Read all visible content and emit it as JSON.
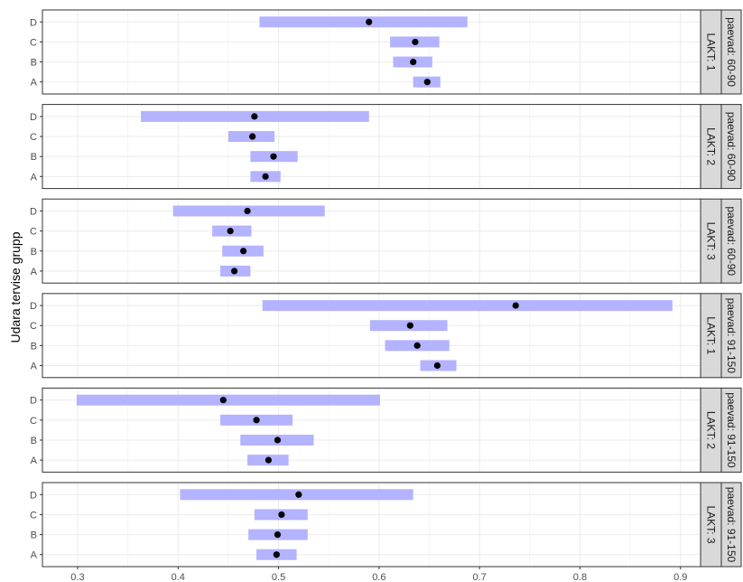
{
  "chart_data": {
    "type": "dot-interval",
    "ylabel": "Udara tervise grupp",
    "xlabel": "",
    "xlim": [
      0.265,
      0.92
    ],
    "x_ticks": [
      "0.3",
      "0.4",
      "0.5",
      "0.6",
      "0.7",
      "0.8",
      "0.9"
    ],
    "x_tick_values": [
      0.3,
      0.4,
      0.5,
      0.6,
      0.7,
      0.8,
      0.9
    ],
    "categories": [
      "A",
      "B",
      "C",
      "D"
    ],
    "grid": true,
    "colors": {
      "interval": "#b3b3ff",
      "point": "#000000",
      "strip": "#d9d9d9",
      "grid": "#ebebeb",
      "border": "#333333"
    },
    "panels": [
      {
        "lakt": "LAKT: 1",
        "paevad": "paevad: 60-90",
        "points": [
          {
            "cat": "A",
            "est": 0.648,
            "lo": 0.634,
            "hi": 0.661
          },
          {
            "cat": "B",
            "est": 0.634,
            "lo": 0.614,
            "hi": 0.653
          },
          {
            "cat": "C",
            "est": 0.636,
            "lo": 0.611,
            "hi": 0.66
          },
          {
            "cat": "D",
            "est": 0.59,
            "lo": 0.481,
            "hi": 0.688
          }
        ]
      },
      {
        "lakt": "LAKT: 2",
        "paevad": "paevad: 60-90",
        "points": [
          {
            "cat": "A",
            "est": 0.487,
            "lo": 0.472,
            "hi": 0.502
          },
          {
            "cat": "B",
            "est": 0.495,
            "lo": 0.472,
            "hi": 0.519
          },
          {
            "cat": "C",
            "est": 0.474,
            "lo": 0.45,
            "hi": 0.496
          },
          {
            "cat": "D",
            "est": 0.476,
            "lo": 0.363,
            "hi": 0.59
          }
        ]
      },
      {
        "lakt": "LAKT: 3",
        "paevad": "paevad: 60-90",
        "points": [
          {
            "cat": "A",
            "est": 0.456,
            "lo": 0.442,
            "hi": 0.472
          },
          {
            "cat": "B",
            "est": 0.465,
            "lo": 0.444,
            "hi": 0.485
          },
          {
            "cat": "C",
            "est": 0.452,
            "lo": 0.434,
            "hi": 0.473
          },
          {
            "cat": "D",
            "est": 0.469,
            "lo": 0.395,
            "hi": 0.546
          }
        ]
      },
      {
        "lakt": "LAKT: 1",
        "paevad": "paevad: 91-150",
        "points": [
          {
            "cat": "A",
            "est": 0.658,
            "lo": 0.641,
            "hi": 0.677
          },
          {
            "cat": "B",
            "est": 0.638,
            "lo": 0.606,
            "hi": 0.67
          },
          {
            "cat": "C",
            "est": 0.631,
            "lo": 0.591,
            "hi": 0.668
          },
          {
            "cat": "D",
            "est": 0.736,
            "lo": 0.484,
            "hi": 0.892
          }
        ]
      },
      {
        "lakt": "LAKT: 2",
        "paevad": "paevad: 91-150",
        "points": [
          {
            "cat": "A",
            "est": 0.49,
            "lo": 0.469,
            "hi": 0.51
          },
          {
            "cat": "B",
            "est": 0.499,
            "lo": 0.462,
            "hi": 0.535
          },
          {
            "cat": "C",
            "est": 0.478,
            "lo": 0.442,
            "hi": 0.514
          },
          {
            "cat": "D",
            "est": 0.445,
            "lo": 0.299,
            "hi": 0.601
          }
        ]
      },
      {
        "lakt": "LAKT: 3",
        "paevad": "paevad: 91-150",
        "points": [
          {
            "cat": "A",
            "est": 0.498,
            "lo": 0.478,
            "hi": 0.518
          },
          {
            "cat": "B",
            "est": 0.499,
            "lo": 0.47,
            "hi": 0.529
          },
          {
            "cat": "C",
            "est": 0.503,
            "lo": 0.476,
            "hi": 0.529
          },
          {
            "cat": "D",
            "est": 0.52,
            "lo": 0.402,
            "hi": 0.634
          }
        ]
      }
    ]
  }
}
